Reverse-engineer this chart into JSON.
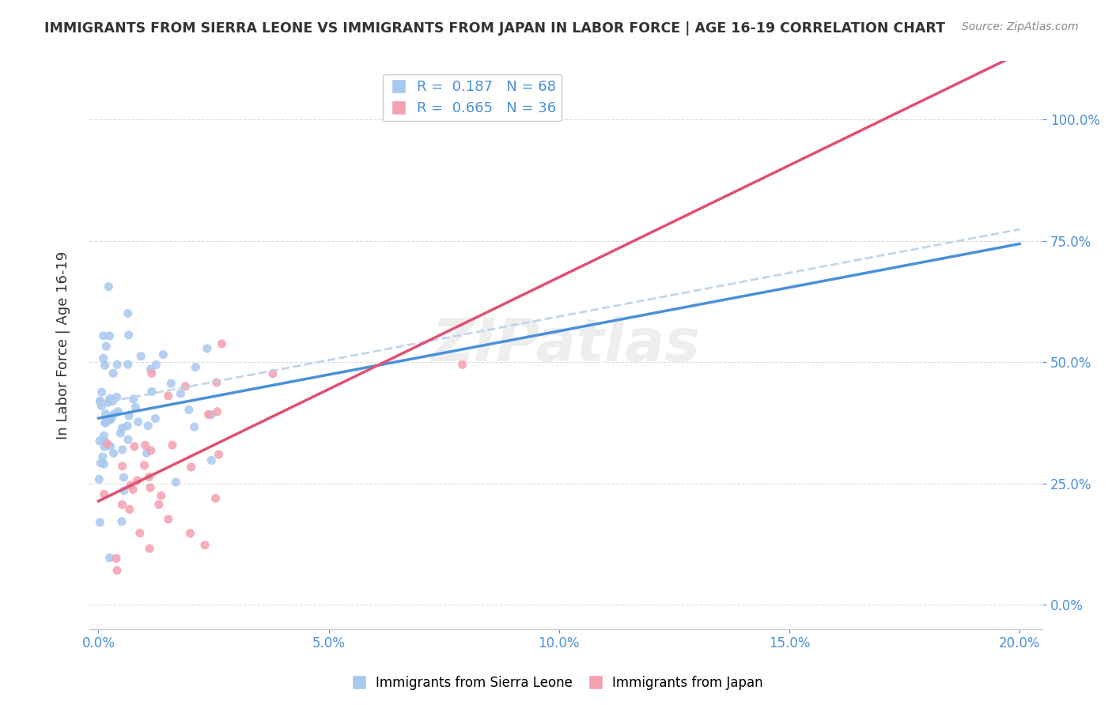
{
  "title": "IMMIGRANTS FROM SIERRA LEONE VS IMMIGRANTS FROM JAPAN IN LABOR FORCE | AGE 16-19 CORRELATION CHART",
  "source": "Source: ZipAtlas.com",
  "ylabel_label": "In Labor Force | Age 16-19",
  "sierra_leone_color": "#a8c8f0",
  "japan_color": "#f4a0b0",
  "trend_blue_color": "#4a90d9",
  "trend_pink_color": "#e05070",
  "trend_dash_color": "#b8cfe8",
  "watermark": "ZIPatlas",
  "background_color": "#ffffff",
  "grid_color": "#cccccc",
  "tick_color": "#4a90d9",
  "title_color": "#333333",
  "source_color": "#888888",
  "r_sl": 0.187,
  "n_sl": 68,
  "r_jp": 0.665,
  "n_jp": 36
}
